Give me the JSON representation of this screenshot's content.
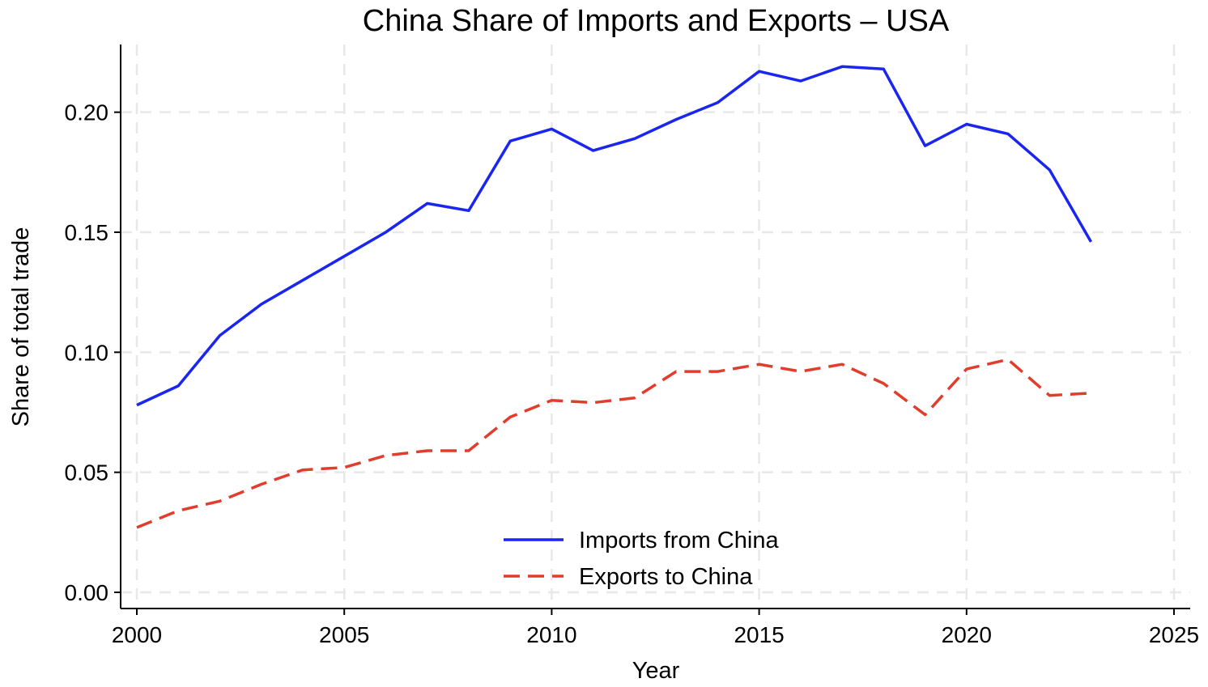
{
  "chart_data": {
    "type": "line",
    "title": "China Share of Imports and Exports  –  USA",
    "xlabel": "Year",
    "ylabel": "Share of total trade",
    "xlim": [
      2000,
      2025
    ],
    "ylim": [
      0.0,
      0.225
    ],
    "xticks": [
      2000,
      2005,
      2010,
      2015,
      2020,
      2025
    ],
    "xtick_labels": [
      "2000",
      "2005",
      "2010",
      "2015",
      "2020",
      "2025"
    ],
    "yticks": [
      0.0,
      0.05,
      0.1,
      0.15,
      0.2
    ],
    "ytick_labels": [
      "0.00",
      "0.05",
      "0.10",
      "0.15",
      "0.20"
    ],
    "grid": true,
    "legend_position": "bottom-center",
    "x": [
      2000,
      2001,
      2002,
      2003,
      2004,
      2005,
      2006,
      2007,
      2008,
      2009,
      2010,
      2011,
      2012,
      2013,
      2014,
      2015,
      2016,
      2017,
      2018,
      2019,
      2020,
      2021,
      2022,
      2023
    ],
    "series": [
      {
        "name": "Imports from China",
        "color": "#1a26f0",
        "style": "solid",
        "values": [
          0.078,
          0.086,
          0.107,
          0.12,
          0.13,
          0.14,
          0.15,
          0.162,
          0.159,
          0.188,
          0.193,
          0.184,
          0.189,
          0.197,
          0.204,
          0.217,
          0.213,
          0.219,
          0.218,
          0.186,
          0.195,
          0.191,
          0.176,
          0.146
        ]
      },
      {
        "name": "Exports to China",
        "color": "#e23c2c",
        "style": "dashed",
        "values": [
          0.027,
          0.034,
          0.038,
          0.045,
          0.051,
          0.052,
          0.057,
          0.059,
          0.059,
          0.073,
          0.08,
          0.079,
          0.081,
          0.092,
          0.092,
          0.095,
          0.092,
          0.095,
          0.087,
          0.074,
          0.093,
          0.097,
          0.082,
          0.083
        ]
      }
    ]
  }
}
